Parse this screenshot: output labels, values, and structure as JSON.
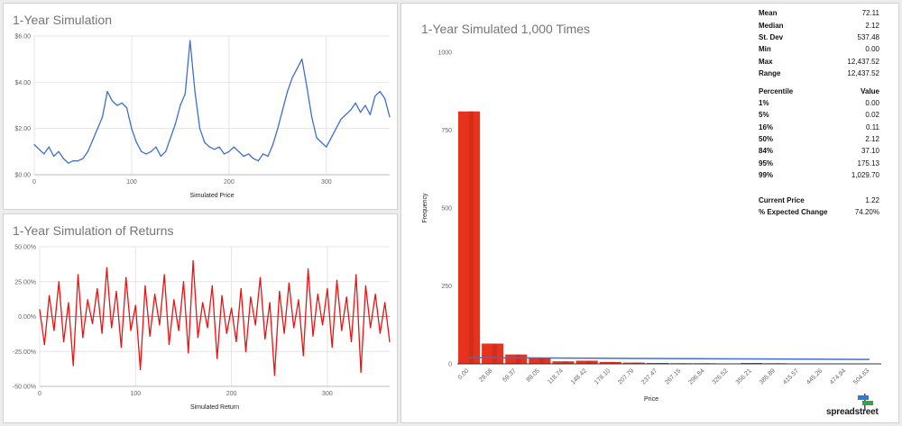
{
  "colors": {
    "price_line": "#3d6fd1",
    "returns_line": "#ee1111",
    "hist_bar": "#e8321e",
    "hist_bar_dark": "#c72a14",
    "hist_bar_light": "#f25e4b",
    "hist_fit_line": "#3d6fd1"
  },
  "chart_data": [
    {
      "type": "line",
      "title": "1-Year Simulation",
      "xlabel": "Simulated Price",
      "xlim": [
        0,
        365
      ],
      "ylim": [
        0,
        6
      ],
      "x_ticks": [
        0,
        100,
        200,
        300
      ],
      "y_ticks": [
        0,
        2,
        4,
        6
      ],
      "y_tick_labels": [
        "$0.00",
        "$2.00",
        "$4.00",
        "$6.00"
      ],
      "grid": true,
      "legend": "none",
      "x": [
        0,
        5,
        10,
        15,
        20,
        25,
        30,
        35,
        40,
        45,
        50,
        55,
        60,
        65,
        70,
        75,
        80,
        85,
        90,
        95,
        100,
        105,
        110,
        115,
        120,
        125,
        130,
        135,
        140,
        145,
        150,
        155,
        160,
        165,
        170,
        175,
        180,
        185,
        190,
        195,
        200,
        205,
        210,
        215,
        220,
        225,
        230,
        235,
        240,
        245,
        250,
        255,
        260,
        265,
        270,
        275,
        280,
        285,
        290,
        295,
        300,
        305,
        310,
        315,
        320,
        325,
        330,
        335,
        340,
        345,
        350,
        355,
        360,
        365
      ],
      "values": [
        1.3,
        1.1,
        0.9,
        1.2,
        0.8,
        1.0,
        0.7,
        0.5,
        0.6,
        0.6,
        0.7,
        1.0,
        1.5,
        2.0,
        2.5,
        3.6,
        3.2,
        3.0,
        3.1,
        2.9,
        2.0,
        1.4,
        1.0,
        0.9,
        1.0,
        1.2,
        0.8,
        1.0,
        1.6,
        2.2,
        3.0,
        3.5,
        5.8,
        3.6,
        2.0,
        1.4,
        1.2,
        1.1,
        1.2,
        0.9,
        1.0,
        1.2,
        1.0,
        0.8,
        0.9,
        0.7,
        0.6,
        0.9,
        0.8,
        1.3,
        2.0,
        2.8,
        3.6,
        4.2,
        4.6,
        5.0,
        3.8,
        2.5,
        1.6,
        1.4,
        1.2,
        1.6,
        2.0,
        2.4,
        2.6,
        2.8,
        3.1,
        2.7,
        3.0,
        2.6,
        3.4,
        3.6,
        3.3,
        2.5
      ]
    },
    {
      "type": "line",
      "title": "1-Year Simulation of Returns",
      "xlabel": "Simulated Return",
      "xlim": [
        0,
        365
      ],
      "ylim": [
        -50,
        50
      ],
      "x_ticks": [
        0,
        100,
        200,
        300
      ],
      "y_ticks": [
        -50,
        -25,
        0,
        25,
        50
      ],
      "y_tick_labels": [
        "-50.00%",
        "-25.00%",
        "0.00%",
        "25.00%",
        "50.00%"
      ],
      "grid": true,
      "legend": "none",
      "x": [
        0,
        5,
        10,
        15,
        20,
        25,
        30,
        35,
        40,
        45,
        50,
        55,
        60,
        65,
        70,
        75,
        80,
        85,
        90,
        95,
        100,
        105,
        110,
        115,
        120,
        125,
        130,
        135,
        140,
        145,
        150,
        155,
        160,
        165,
        170,
        175,
        180,
        185,
        190,
        195,
        200,
        205,
        210,
        215,
        220,
        225,
        230,
        235,
        240,
        245,
        250,
        255,
        260,
        265,
        270,
        275,
        280,
        285,
        290,
        295,
        300,
        305,
        310,
        315,
        320,
        325,
        330,
        335,
        340,
        345,
        350,
        355,
        360,
        365
      ],
      "values": [
        5,
        -20,
        15,
        -10,
        25,
        -18,
        10,
        -35,
        30,
        -15,
        12,
        -5,
        20,
        -12,
        35,
        -8,
        18,
        -22,
        28,
        -10,
        8,
        -38,
        22,
        -14,
        16,
        -6,
        30,
        -20,
        12,
        -10,
        25,
        -26,
        40,
        -15,
        10,
        -8,
        22,
        -30,
        15,
        -12,
        6,
        -18,
        20,
        -25,
        14,
        -6,
        28,
        -16,
        10,
        -42,
        18,
        -12,
        24,
        -8,
        12,
        -28,
        34,
        -14,
        16,
        -6,
        20,
        -22,
        26,
        -10,
        14,
        -18,
        30,
        -40,
        22,
        -8,
        16,
        -12,
        10,
        -18
      ]
    },
    {
      "type": "bar",
      "title": "1-Year Simulated 1,000 Times",
      "xlabel": "Price",
      "ylabel": "Frequency",
      "ylim": [
        0,
        1000
      ],
      "y_ticks": [
        0,
        250,
        500,
        750,
        1000
      ],
      "categories": [
        "0.00",
        "29.68",
        "59.37",
        "89.05",
        "118.74",
        "148.42",
        "178.10",
        "207.79",
        "237.47",
        "267.15",
        "296.84",
        "326.52",
        "356.21",
        "385.89",
        "415.57",
        "445.26",
        "474.94",
        "504.63"
      ],
      "values": [
        810,
        65,
        30,
        20,
        8,
        10,
        6,
        4,
        3,
        2,
        2,
        1,
        3,
        2,
        1,
        1,
        1,
        0
      ],
      "fit_line": [
        20,
        14
      ],
      "grid": false,
      "legend": "none"
    }
  ],
  "stats": {
    "rows": [
      {
        "key": "Mean",
        "value": "72.11"
      },
      {
        "key": "Median",
        "value": "2.12"
      },
      {
        "key": "St. Dev",
        "value": "537.48"
      },
      {
        "key": "Min",
        "value": "0.00"
      },
      {
        "key": "Max",
        "value": "12,437.52"
      },
      {
        "key": "Range",
        "value": "12,437.52"
      }
    ],
    "percentile_header": {
      "key": "Percentile",
      "value": "Value"
    },
    "percentiles": [
      {
        "key": "1%",
        "value": "0.00"
      },
      {
        "key": "5%",
        "value": "0.02"
      },
      {
        "key": "16%",
        "value": "0.11"
      },
      {
        "key": "50%",
        "value": "2.12"
      },
      {
        "key": "84%",
        "value": "37.10"
      },
      {
        "key": "95%",
        "value": "175.13"
      },
      {
        "key": "99%",
        "value": "1,029.70"
      }
    ],
    "summary": [
      {
        "key": "Current Price",
        "value": "1.22"
      },
      {
        "key": "% Expected Change",
        "value": "74.20%"
      }
    ]
  },
  "logo": {
    "text": "spreadstreet",
    "icon": "signpost-flag-icon"
  }
}
